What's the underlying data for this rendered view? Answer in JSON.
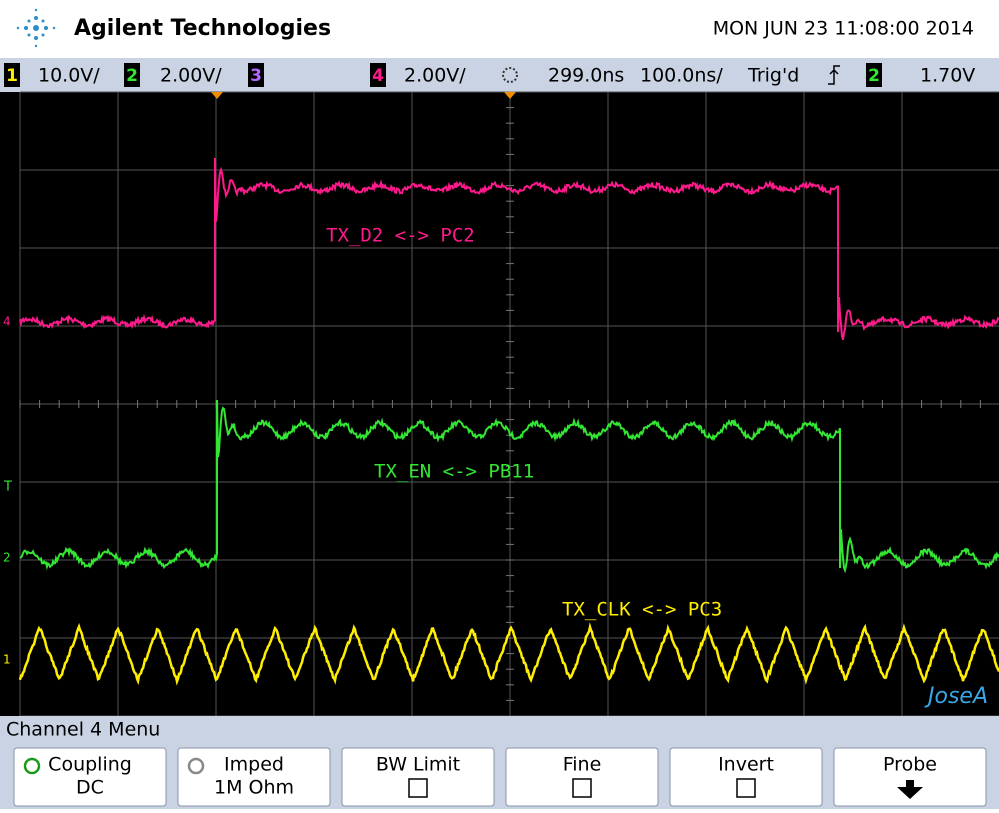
{
  "header": {
    "brand": "Agilent Technologies",
    "datetime": "MON JUN 23 11:08:00 2014"
  },
  "status": {
    "channels": [
      {
        "num": "1",
        "scale": "10.0V/"
      },
      {
        "num": "2",
        "scale": "2.00V/"
      },
      {
        "num": "3"
      },
      {
        "num": "4",
        "scale": "2.00V/"
      }
    ],
    "delay": "299.0ns",
    "timebase": "100.0ns/",
    "trigger": "Trig'd",
    "trigger_channel": "2",
    "trigger_level": "1.70V"
  },
  "traces": [
    {
      "marker": "4",
      "label": "TX_D2 <-> PC2"
    },
    {
      "marker": "2",
      "label": "TX_EN <-> PB11"
    },
    {
      "marker": "1",
      "label": "TX_CLK <-> PC3"
    }
  ],
  "trigger_marker": "T",
  "watermark": "JoseA",
  "menu": {
    "title": "Channel 4 Menu",
    "buttons": [
      {
        "label": "Coupling",
        "value": "DC"
      },
      {
        "label": "Imped",
        "value": "1M Ohm"
      },
      {
        "label": "BW Limit"
      },
      {
        "label": "Fine"
      },
      {
        "label": "Invert"
      },
      {
        "label": "Probe"
      }
    ]
  }
}
